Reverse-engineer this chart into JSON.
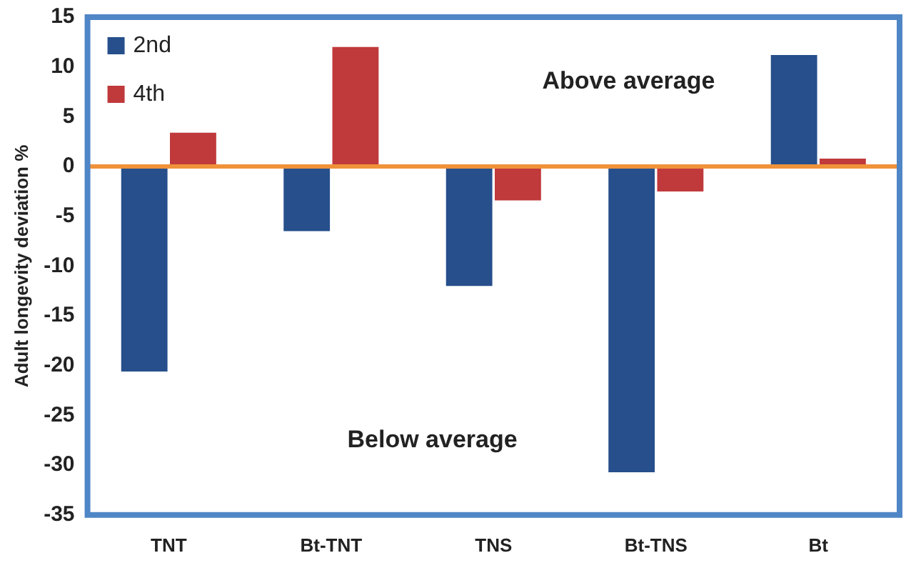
{
  "chart_data": {
    "type": "bar",
    "ylabel": "Adult longevity deviation %",
    "categories": [
      "TNT",
      "Bt-TNT",
      "TNS",
      "Bt-TNS",
      "Bt"
    ],
    "series": [
      {
        "name": "2nd",
        "color": "#264f8c",
        "values": [
          -20.6,
          -6.5,
          -12.0,
          -30.7,
          11.2
        ]
      },
      {
        "name": "4th",
        "color": "#c0393b",
        "values": [
          3.4,
          12.0,
          -3.4,
          -2.5,
          0.8
        ]
      }
    ],
    "ylim": [
      -35,
      15
    ],
    "yticks": [
      -35,
      -30,
      -25,
      -20,
      -15,
      -10,
      -5,
      0,
      5,
      10,
      15
    ],
    "ref_lines": [
      {
        "axis": "y",
        "value": 0,
        "color": "#f0923a"
      }
    ],
    "annotations": [
      "Above average",
      "Below average"
    ],
    "legend": "top left",
    "grid": false
  }
}
